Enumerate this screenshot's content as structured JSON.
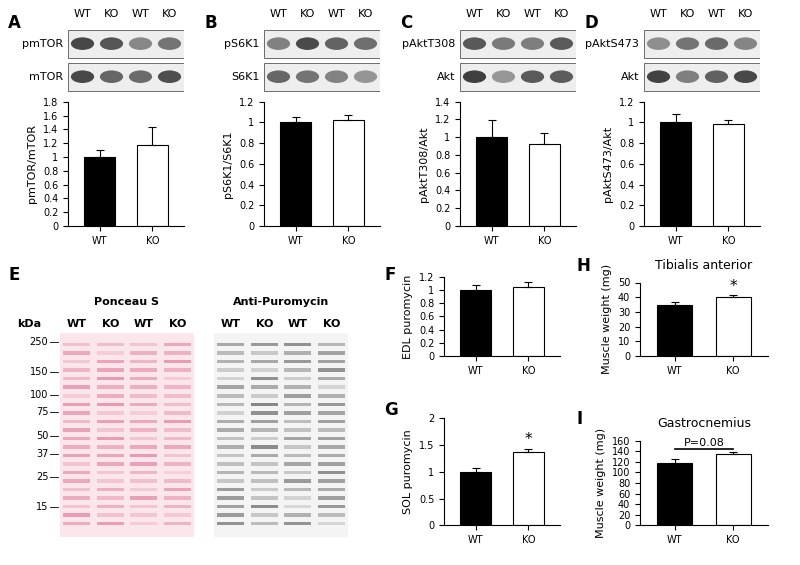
{
  "chart_data": [
    {
      "type": "bar",
      "panel": "A",
      "categories": [
        "WT",
        "KO"
      ],
      "values": [
        1.0,
        1.18
      ],
      "errors": [
        0.1,
        0.26
      ],
      "colors": [
        "#000000",
        "#ffffff"
      ],
      "ylabel": "pmTOR/mTOR",
      "ylim": [
        0,
        1.8
      ],
      "yticks": [
        0,
        0.2,
        0.4,
        0.6,
        0.8,
        1,
        1.2,
        1.4,
        1.6,
        1.8
      ],
      "blots": {
        "lanes": [
          "WT",
          "KO",
          "WT",
          "KO"
        ],
        "rows": [
          "pmTOR",
          "mTOR"
        ]
      }
    },
    {
      "type": "bar",
      "panel": "B",
      "categories": [
        "WT",
        "KO"
      ],
      "values": [
        1.0,
        1.02
      ],
      "errors": [
        0.05,
        0.05
      ],
      "colors": [
        "#000000",
        "#ffffff"
      ],
      "ylabel": "pS6K1/S6K1",
      "ylim": [
        0,
        1.2
      ],
      "yticks": [
        0,
        0.2,
        0.4,
        0.6,
        0.8,
        1,
        1.2
      ],
      "blots": {
        "lanes": [
          "WT",
          "KO",
          "WT",
          "KO"
        ],
        "rows": [
          "pS6K1",
          "S6K1"
        ]
      }
    },
    {
      "type": "bar",
      "panel": "C",
      "categories": [
        "WT",
        "KO"
      ],
      "values": [
        1.0,
        0.92
      ],
      "errors": [
        0.19,
        0.13
      ],
      "colors": [
        "#000000",
        "#ffffff"
      ],
      "ylabel": "pAktT308/Akt",
      "ylim": [
        0,
        1.4
      ],
      "yticks": [
        0,
        0.2,
        0.4,
        0.6,
        0.8,
        1,
        1.2,
        1.4
      ],
      "blots": {
        "lanes": [
          "WT",
          "KO",
          "WT",
          "KO"
        ],
        "rows": [
          "pAktT308",
          "Akt"
        ]
      }
    },
    {
      "type": "bar",
      "panel": "D",
      "categories": [
        "WT",
        "KO"
      ],
      "values": [
        1.0,
        0.98
      ],
      "errors": [
        0.08,
        0.04
      ],
      "colors": [
        "#000000",
        "#ffffff"
      ],
      "ylabel": "pAktS473/Akt",
      "ylim": [
        0,
        1.2
      ],
      "yticks": [
        0,
        0.2,
        0.4,
        0.6,
        0.8,
        1,
        1.2
      ],
      "blots": {
        "lanes": [
          "WT",
          "KO",
          "WT",
          "KO"
        ],
        "rows": [
          "pAktS473",
          "Akt"
        ]
      }
    },
    {
      "type": "bar",
      "panel": "F",
      "categories": [
        "WT",
        "KO"
      ],
      "values": [
        1.0,
        1.05
      ],
      "errors": [
        0.07,
        0.07
      ],
      "colors": [
        "#000000",
        "#ffffff"
      ],
      "ylabel": "EDL puromycin",
      "ylim": [
        0,
        1.2
      ],
      "yticks": [
        0,
        0.2,
        0.4,
        0.6,
        0.8,
        1,
        1.2
      ]
    },
    {
      "type": "bar",
      "panel": "G",
      "categories": [
        "WT",
        "KO"
      ],
      "values": [
        1.0,
        1.36
      ],
      "errors": [
        0.07,
        0.07
      ],
      "colors": [
        "#000000",
        "#ffffff"
      ],
      "ylabel": "SOL puromycin",
      "ylim": [
        0,
        2
      ],
      "yticks": [
        0,
        0.5,
        1,
        1.5,
        2
      ],
      "annotations": [
        "*"
      ]
    },
    {
      "type": "bar",
      "panel": "H",
      "title": "Tibialis anterior",
      "categories": [
        "WT",
        "KO"
      ],
      "values": [
        35,
        40
      ],
      "errors": [
        2,
        1.5
      ],
      "colors": [
        "#000000",
        "#ffffff"
      ],
      "ylabel": "Muscle weight (mg)",
      "ylim": [
        0,
        50
      ],
      "yticks": [
        0,
        10,
        20,
        30,
        40,
        50
      ],
      "annotations": [
        "*"
      ]
    },
    {
      "type": "bar",
      "panel": "I",
      "title": "Gastrocnemius",
      "categories": [
        "WT",
        "KO"
      ],
      "values": [
        118,
        134
      ],
      "errors": [
        8,
        4
      ],
      "colors": [
        "#000000",
        "#ffffff"
      ],
      "ylabel": "Muscle weight (mg)",
      "ylim": [
        0,
        160
      ],
      "yticks": [
        0,
        20,
        40,
        60,
        80,
        100,
        120,
        140,
        160
      ],
      "annotations": [
        "P=0.08"
      ]
    }
  ],
  "blot_figure": {
    "panel": "E",
    "kda_label": "kDa",
    "markers": [
      250,
      150,
      100,
      75,
      50,
      37,
      25,
      15
    ],
    "stains": [
      "Ponceau S",
      "Anti-Puromycin"
    ],
    "lanes": [
      "WT",
      "KO",
      "WT",
      "KO"
    ]
  }
}
